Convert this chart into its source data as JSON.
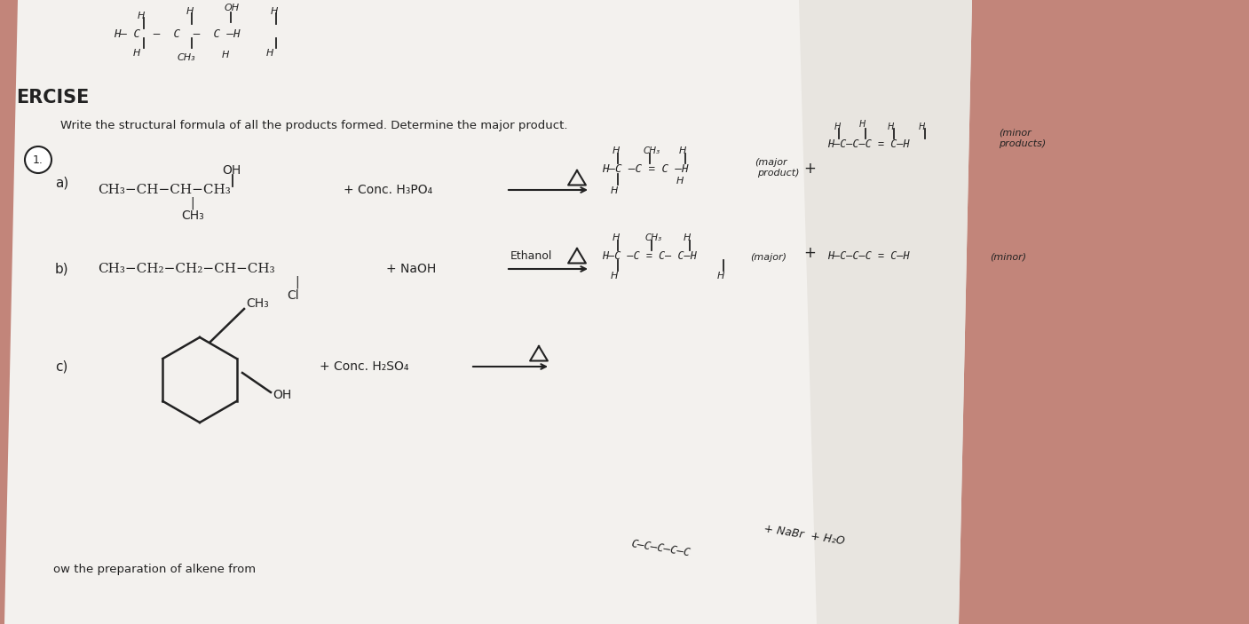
{
  "bg_color": "#c2857a",
  "paper_bgcolor": "#f0eeec",
  "text_color": "#222222",
  "exercise_label": "ERCISE",
  "q1_text": "Write the structural formula of all the products formed. Determine the major product.",
  "label_a": "a)",
  "label_b": "b)",
  "label_c": "c)",
  "bottom_text": "ow the preparation of alkene from",
  "bottom_right": "C–C–C–C–C  + NaBr + H₂O"
}
